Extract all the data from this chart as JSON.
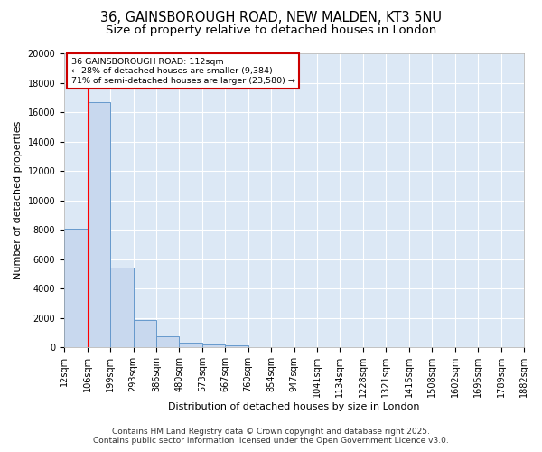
{
  "title_line1": "36, GAINSBOROUGH ROAD, NEW MALDEN, KT3 5NU",
  "title_line2": "Size of property relative to detached houses in London",
  "xlabel": "Distribution of detached houses by size in London",
  "ylabel": "Number of detached properties",
  "bar_values": [
    8100,
    16700,
    5400,
    1850,
    750,
    300,
    200,
    150,
    0,
    0,
    0,
    0,
    0,
    0,
    0,
    0,
    0,
    0,
    0,
    0
  ],
  "bin_edges": [
    12,
    106,
    199,
    293,
    386,
    480,
    573,
    667,
    760,
    854,
    947,
    1041,
    1134,
    1228,
    1321,
    1415,
    1508,
    1602,
    1695,
    1789,
    1882
  ],
  "tick_labels": [
    "12sqm",
    "106sqm",
    "199sqm",
    "293sqm",
    "386sqm",
    "480sqm",
    "573sqm",
    "667sqm",
    "760sqm",
    "854sqm",
    "947sqm",
    "1041sqm",
    "1134sqm",
    "1228sqm",
    "1321sqm",
    "1415sqm",
    "1508sqm",
    "1602sqm",
    "1695sqm",
    "1789sqm",
    "1882sqm"
  ],
  "bar_color": "#c8d8ee",
  "bar_edge_color": "#6699cc",
  "red_line_x": 112,
  "annotation_text": "36 GAINSBOROUGH ROAD: 112sqm\n← 28% of detached houses are smaller (9,384)\n71% of semi-detached houses are larger (23,580) →",
  "annotation_box_color": "#ffffff",
  "annotation_box_edge_color": "#cc0000",
  "ylim": [
    0,
    20000
  ],
  "yticks": [
    0,
    2000,
    4000,
    6000,
    8000,
    10000,
    12000,
    14000,
    16000,
    18000,
    20000
  ],
  "footer_line1": "Contains HM Land Registry data © Crown copyright and database right 2025.",
  "footer_line2": "Contains public sector information licensed under the Open Government Licence v3.0.",
  "fig_bg_color": "#ffffff",
  "plot_bg_color": "#dce8f5",
  "grid_color": "#ffffff",
  "title_fontsize": 10.5,
  "subtitle_fontsize": 9.5,
  "axis_label_fontsize": 8,
  "tick_fontsize": 7,
  "footer_fontsize": 6.5
}
